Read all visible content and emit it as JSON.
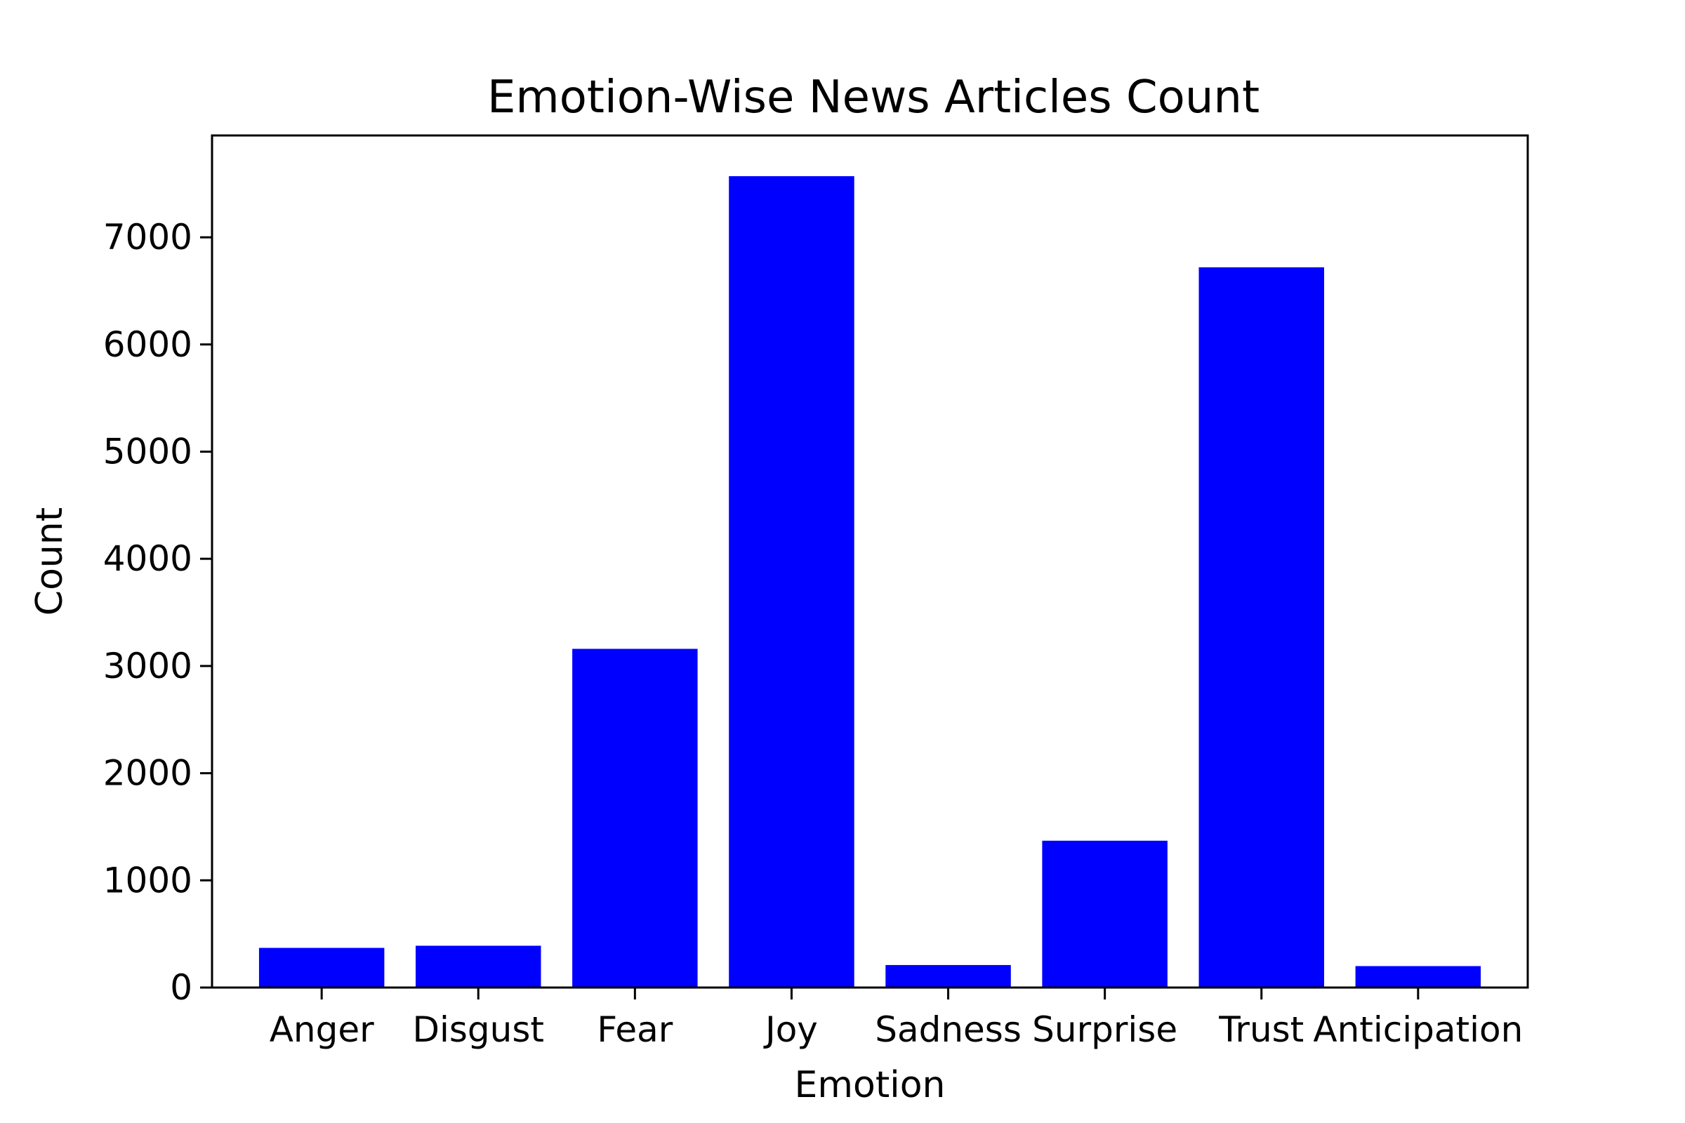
{
  "chart_data": {
    "type": "bar",
    "title": "Emotion-Wise News Articles Count",
    "xlabel": "Emotion",
    "ylabel": "Count",
    "categories": [
      "Anger",
      "Disgust",
      "Fear",
      "Joy",
      "Sadness",
      "Surprise",
      "Trust",
      "Anticipation"
    ],
    "values": [
      370,
      390,
      3160,
      7570,
      210,
      1370,
      6720,
      200
    ],
    "yticks": [
      0,
      1000,
      2000,
      3000,
      4000,
      5000,
      6000,
      7000
    ],
    "ylim": [
      0,
      7950
    ],
    "grid": false,
    "bar_color": "#0000ff"
  }
}
